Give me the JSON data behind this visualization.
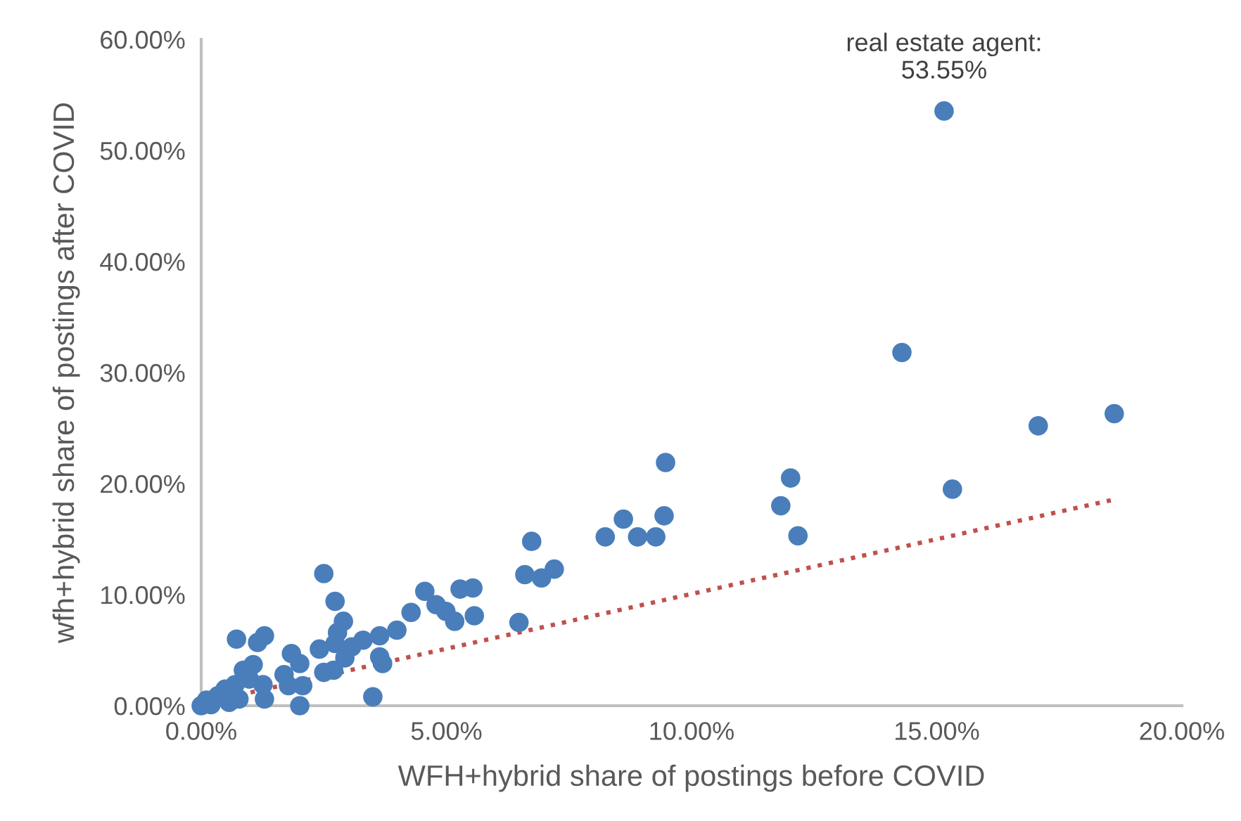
{
  "chart_data": {
    "type": "scatter",
    "xlabel": "WFH+hybrid share of postings before COVID",
    "ylabel": "wfh+hybrid share of postings after COVID",
    "xlim": [
      0,
      20
    ],
    "ylim": [
      0,
      60
    ],
    "xticks": [
      {
        "value": 0,
        "label": "0.00%"
      },
      {
        "value": 5,
        "label": "5.00%"
      },
      {
        "value": 10,
        "label": "10.00%"
      },
      {
        "value": 15,
        "label": "15.00%"
      },
      {
        "value": 20,
        "label": "20.00%"
      }
    ],
    "yticks": [
      {
        "value": 0,
        "label": "0.00%"
      },
      {
        "value": 10,
        "label": "10.00%"
      },
      {
        "value": 20,
        "label": "20.00%"
      },
      {
        "value": 30,
        "label": "30.00%"
      },
      {
        "value": 40,
        "label": "40.00%"
      },
      {
        "value": 50,
        "label": "50.00%"
      },
      {
        "value": 60,
        "label": "60.00%"
      }
    ],
    "grid": false,
    "series": [
      {
        "marker": "circle",
        "color": "#4a7ebb",
        "x": [
          15.15,
          14.29,
          17.07,
          18.62,
          15.32,
          9.47,
          12.02,
          11.82,
          12.17,
          9.44,
          8.61,
          8.24,
          8.9,
          9.27,
          6.74,
          6.94,
          7.2,
          6.6,
          6.48,
          5.54,
          5.28,
          5.57,
          5.17,
          4.99,
          4.79,
          4.56,
          4.28,
          3.99,
          3.64,
          3.3,
          3.07,
          2.41,
          2.73,
          2.78,
          2.9,
          2.73,
          2.5,
          3.5,
          3.7,
          3.64,
          2.93,
          2.7,
          2.5,
          2.01,
          1.84,
          1.69,
          1.78,
          2.01,
          2.07,
          1.29,
          1.15,
          0.72,
          1.06,
          0.86,
          1.26,
          1.29,
          0.98,
          0.69,
          0.49,
          0.34,
          0.11,
          0.0,
          0.57,
          0.77,
          0.2
        ],
        "values": [
          53.55,
          31.8,
          25.2,
          26.3,
          19.5,
          21.9,
          20.5,
          18.0,
          15.3,
          17.1,
          16.8,
          15.2,
          15.2,
          15.2,
          14.8,
          11.5,
          12.3,
          11.8,
          7.5,
          10.6,
          10.5,
          8.1,
          7.6,
          8.5,
          9.1,
          10.3,
          8.4,
          6.8,
          6.3,
          5.9,
          5.3,
          5.1,
          5.6,
          6.6,
          7.6,
          9.4,
          11.9,
          0.8,
          3.8,
          4.4,
          4.3,
          3.2,
          3.0,
          3.8,
          4.7,
          2.8,
          1.8,
          0.0,
          1.8,
          6.3,
          5.7,
          6.0,
          3.7,
          3.2,
          1.9,
          0.6,
          2.4,
          1.9,
          1.5,
          0.9,
          0.5,
          0.0,
          0.3,
          0.6,
          0.1
        ]
      },
      {
        "type": "line",
        "color": "#c0504d",
        "line_style": "dotted",
        "marker": "none",
        "x": [
          0.1,
          18.55
        ],
        "values": [
          0.3,
          18.5
        ]
      }
    ],
    "annotations": [
      {
        "text": "real estate agent:\n53.55%",
        "x": 15.15,
        "y": 53.55
      }
    ]
  }
}
